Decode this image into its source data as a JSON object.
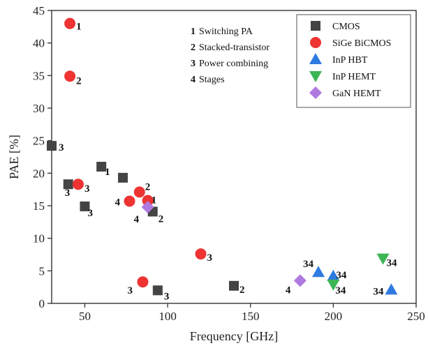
{
  "chart_data": {
    "type": "scatter",
    "xlabel": "Frequency [GHz]",
    "ylabel": "PAE [%]",
    "xlim": [
      30,
      250
    ],
    "ylim": [
      0,
      45
    ],
    "xticks": [
      50,
      100,
      150,
      200,
      250
    ],
    "yticks": [
      0,
      5,
      10,
      15,
      20,
      25,
      30,
      35,
      40,
      45
    ],
    "grid": false,
    "legend_position": "top-right",
    "annotations": [
      {
        "num": "1",
        "text": "Switching PA"
      },
      {
        "num": "2",
        "text": "Stacked-transistor"
      },
      {
        "num": "3",
        "text": "Power combining"
      },
      {
        "num": "4",
        "text": "Stages"
      }
    ],
    "series": [
      {
        "name": "CMOS",
        "marker": "square",
        "color": "#444444",
        "points": [
          {
            "x": 30,
            "y": 24.2,
            "label": "3"
          },
          {
            "x": 40,
            "y": 18.3,
            "label": "3"
          },
          {
            "x": 50,
            "y": 14.9,
            "label": "3"
          },
          {
            "x": 60,
            "y": 21.0,
            "label": "1"
          },
          {
            "x": 73,
            "y": 19.3,
            "label": ""
          },
          {
            "x": 91,
            "y": 14.1,
            "label": "2"
          },
          {
            "x": 94,
            "y": 2.0,
            "label": "3"
          },
          {
            "x": 140,
            "y": 2.7,
            "label": "2"
          }
        ]
      },
      {
        "name": "SiGe BiCMOS",
        "marker": "circle",
        "color": "#ee3333",
        "points": [
          {
            "x": 41,
            "y": 43.0,
            "label": "1"
          },
          {
            "x": 41,
            "y": 34.9,
            "label": "2"
          },
          {
            "x": 46,
            "y": 18.3,
            "label": "3"
          },
          {
            "x": 77,
            "y": 15.7,
            "label": "4"
          },
          {
            "x": 83,
            "y": 17.1,
            "label": "2"
          },
          {
            "x": 88,
            "y": 15.8,
            "label": "1"
          },
          {
            "x": 85,
            "y": 3.3,
            "label": "3"
          },
          {
            "x": 120,
            "y": 7.6,
            "label": "3"
          }
        ]
      },
      {
        "name": "InP HBT",
        "marker": "triangle-up",
        "color": "#2d7ae0",
        "points": [
          {
            "x": 191,
            "y": 4.8,
            "label": "34"
          },
          {
            "x": 200,
            "y": 4.2,
            "label": "34"
          },
          {
            "x": 235,
            "y": 2.1,
            "label": "34"
          }
        ]
      },
      {
        "name": "InP HEMT",
        "marker": "triangle-down",
        "color": "#3cb554",
        "points": [
          {
            "x": 200,
            "y": 2.9,
            "label": "34"
          },
          {
            "x": 230,
            "y": 6.9,
            "label": "34"
          }
        ]
      },
      {
        "name": "GaN HEMT",
        "marker": "diamond",
        "color": "#b07ae0",
        "points": [
          {
            "x": 88,
            "y": 14.8,
            "label": "4"
          },
          {
            "x": 180,
            "y": 3.5,
            "label": "4"
          }
        ]
      }
    ]
  }
}
